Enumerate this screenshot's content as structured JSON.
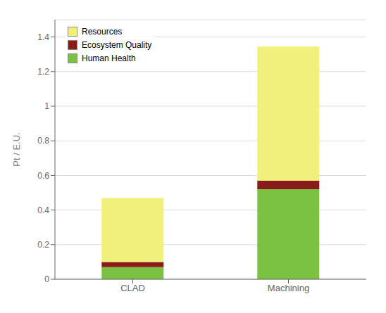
{
  "chart_data": {
    "type": "bar",
    "stacked": true,
    "categories": [
      "CLAD",
      "Machining"
    ],
    "series": [
      {
        "name": "Human Health",
        "color": "#7bc142",
        "values": [
          0.07,
          0.52
        ]
      },
      {
        "name": "Ecosystem Quality",
        "color": "#8b1a1a",
        "values": [
          0.03,
          0.05
        ]
      },
      {
        "name": "Resources",
        "color": "#f0f07a",
        "values": [
          0.37,
          0.775
        ]
      }
    ],
    "ylabel": "Pt / E.U.",
    "ylim": [
      0,
      1.5
    ],
    "yticks": [
      0,
      0.2,
      0.4,
      0.6,
      0.8,
      1,
      1.2,
      1.4
    ],
    "grid": true,
    "legend": "upper left"
  }
}
